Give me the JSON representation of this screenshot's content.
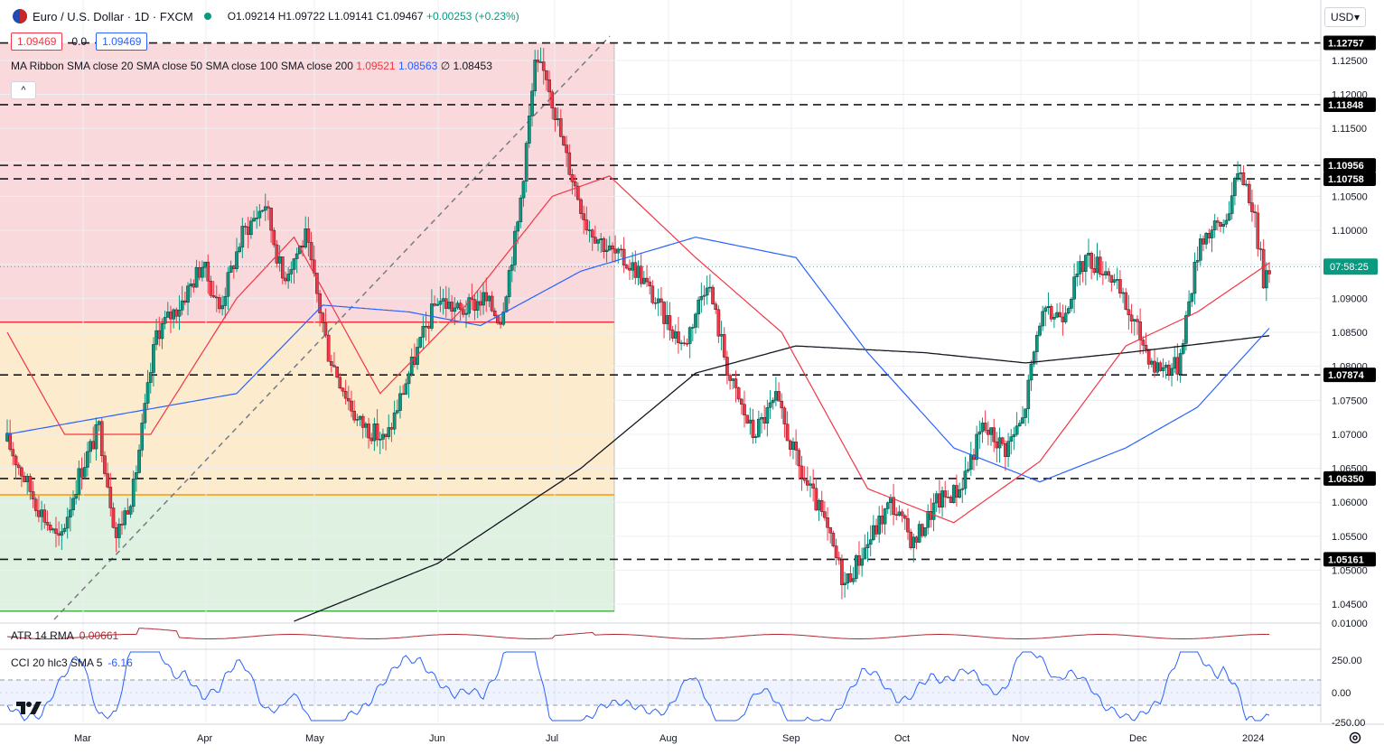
{
  "header": {
    "symbol": "Euro / U.S. Dollar · 1D · FXCM",
    "open": "O1.09214",
    "high": "H1.09722",
    "low": "L1.09141",
    "close": "C1.09467",
    "change": "+0.00253 (+0.23%)",
    "bid": "1.09469",
    "spread": "0.0",
    "ask": "1.09469",
    "currency": "USD",
    "collapse": "^"
  },
  "ma_ribbon": {
    "label": "MA Ribbon SMA close 20 SMA close 50 SMA close 100 SMA close 200",
    "v20": "1.09521",
    "v50": "1.08563",
    "v100": "∅",
    "v200": "1.08453"
  },
  "atr": {
    "label": "ATR 14 RMA",
    "value": "0.00661"
  },
  "cci": {
    "label": "CCI 20 hlc3 SMA 5",
    "value": "-6.16"
  },
  "colors": {
    "up": "#089981",
    "down": "#f23645",
    "sma20": "#f23645",
    "sma50": "#2962ff",
    "sma200": "#131722",
    "fib_red": "#f8d2d5",
    "fib_orange": "#fde7c6",
    "fib_green": "#d9eedb"
  },
  "countdown": "07:58:25",
  "chart_data": {
    "type": "candlestick",
    "x_labels": [
      "Mar",
      "Apr",
      "May",
      "Jun",
      "Jul",
      "Aug",
      "Sep",
      "Oct",
      "Nov",
      "Dec",
      "2024"
    ],
    "y_ticks": [
      "1.12500",
      "1.12000",
      "1.11500",
      "1.11000",
      "1.10500",
      "1.10000",
      "1.09500",
      "1.09000",
      "1.08500",
      "1.08000",
      "1.07500",
      "1.07000",
      "1.06500",
      "1.06000",
      "1.05500",
      "1.05000",
      "1.04500"
    ],
    "ylim": [
      1.0425,
      1.1295
    ],
    "levels": [
      "1.12757",
      "1.11848",
      "1.10956",
      "1.10758",
      "1.07874",
      "1.06350",
      "1.05161"
    ],
    "current_price": "1.09467",
    "fib_levels": [
      1.12757,
      1.0865,
      1.0611,
      1.044
    ],
    "atr_ticks": [
      "0.01000"
    ],
    "cci_ticks": [
      "250.00",
      "0.00",
      "-250.00"
    ],
    "anchors": [
      [
        0,
        1.069
      ],
      [
        10,
        1.06
      ],
      [
        18,
        1.054
      ],
      [
        25,
        1.064
      ],
      [
        32,
        1.071
      ],
      [
        38,
        1.055
      ],
      [
        44,
        1.062
      ],
      [
        52,
        1.085
      ],
      [
        60,
        1.089
      ],
      [
        68,
        1.095
      ],
      [
        74,
        1.0885
      ],
      [
        82,
        1.0995
      ],
      [
        90,
        1.104
      ],
      [
        96,
        1.093
      ],
      [
        104,
        1.099
      ],
      [
        112,
        1.082
      ],
      [
        122,
        1.072
      ],
      [
        132,
        1.069
      ],
      [
        140,
        1.079
      ],
      [
        150,
        1.09
      ],
      [
        158,
        1.088
      ],
      [
        166,
        1.09
      ],
      [
        172,
        1.087
      ],
      [
        178,
        1.101
      ],
      [
        184,
        1.124
      ],
      [
        188,
        1.123
      ],
      [
        194,
        1.112
      ],
      [
        202,
        1.101
      ],
      [
        210,
        1.097
      ],
      [
        220,
        1.094
      ],
      [
        228,
        1.088
      ],
      [
        236,
        1.083
      ],
      [
        244,
        1.093
      ],
      [
        252,
        1.078
      ],
      [
        260,
        1.07
      ],
      [
        268,
        1.075
      ],
      [
        276,
        1.065
      ],
      [
        284,
        1.058
      ],
      [
        292,
        1.048
      ],
      [
        300,
        1.054
      ],
      [
        308,
        1.06
      ],
      [
        316,
        1.054
      ],
      [
        324,
        1.06
      ],
      [
        332,
        1.062
      ],
      [
        340,
        1.071
      ],
      [
        348,
        1.068
      ],
      [
        354,
        1.072
      ],
      [
        360,
        1.087
      ],
      [
        368,
        1.088
      ],
      [
        376,
        1.096
      ],
      [
        384,
        1.094
      ],
      [
        392,
        1.087
      ],
      [
        400,
        1.08
      ],
      [
        408,
        1.08
      ],
      [
        416,
        1.099
      ],
      [
        424,
        1.101
      ],
      [
        430,
        1.109
      ],
      [
        434,
        1.104
      ],
      [
        438,
        1.093
      ],
      [
        440,
        1.0947
      ]
    ],
    "sma20_anchors": [
      [
        0,
        1.085
      ],
      [
        20,
        1.07
      ],
      [
        50,
        1.07
      ],
      [
        80,
        1.09
      ],
      [
        100,
        1.099
      ],
      [
        130,
        1.076
      ],
      [
        160,
        1.089
      ],
      [
        190,
        1.105
      ],
      [
        210,
        1.108
      ],
      [
        240,
        1.096
      ],
      [
        270,
        1.085
      ],
      [
        300,
        1.062
      ],
      [
        330,
        1.057
      ],
      [
        360,
        1.066
      ],
      [
        390,
        1.083
      ],
      [
        415,
        1.088
      ],
      [
        440,
        1.0952
      ]
    ],
    "sma50_anchors": [
      [
        0,
        1.07
      ],
      [
        40,
        1.073
      ],
      [
        80,
        1.076
      ],
      [
        110,
        1.089
      ],
      [
        140,
        1.088
      ],
      [
        165,
        1.086
      ],
      [
        200,
        1.094
      ],
      [
        240,
        1.099
      ],
      [
        275,
        1.096
      ],
      [
        300,
        1.082
      ],
      [
        330,
        1.068
      ],
      [
        360,
        1.063
      ],
      [
        390,
        1.068
      ],
      [
        415,
        1.074
      ],
      [
        440,
        1.0856
      ]
    ],
    "sma200_anchors": [
      [
        100,
        1.0425
      ],
      [
        150,
        1.051
      ],
      [
        200,
        1.065
      ],
      [
        240,
        1.079
      ],
      [
        275,
        1.083
      ],
      [
        320,
        1.082
      ],
      [
        355,
        1.0805
      ],
      [
        390,
        1.082
      ],
      [
        440,
        1.0845
      ]
    ]
  }
}
